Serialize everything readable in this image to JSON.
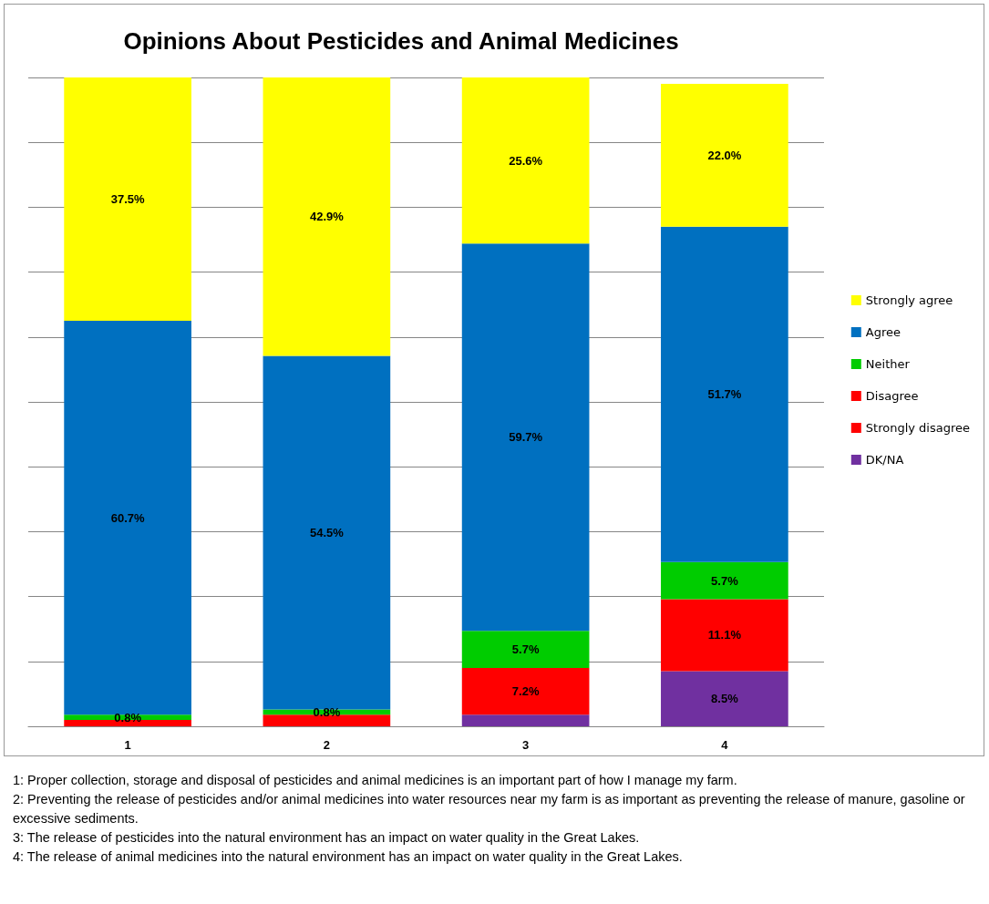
{
  "chart_data": {
    "type": "bar",
    "title": "Opinions About Pesticides and Animal Medicines",
    "categories": [
      "1",
      "2",
      "3",
      "4"
    ],
    "stacked": true,
    "series": [
      {
        "name": "DK/NA",
        "color": "#7030a0",
        "values": [
          null,
          null,
          1.8,
          8.5
        ],
        "value_labels": [
          null,
          null,
          null,
          "8.5%"
        ]
      },
      {
        "name": "Strongly disagree",
        "color": "#ff0000",
        "values": [
          null,
          null,
          null,
          null
        ]
      },
      {
        "name": "Disagree",
        "color": "#ff0000",
        "values": [
          1.0,
          1.8,
          7.2,
          11.1
        ],
        "value_labels": [
          null,
          null,
          "7.2%",
          "11.1%"
        ]
      },
      {
        "name": "Neither",
        "color": "#00cc00",
        "values": [
          0.8,
          0.8,
          5.7,
          5.7
        ],
        "value_labels": [
          "0.8%",
          "0.8%",
          "5.7%",
          "5.7%"
        ]
      },
      {
        "name": "Agree",
        "color": "#0070c0",
        "values": [
          60.7,
          54.5,
          59.7,
          51.7
        ],
        "value_labels": [
          "60.7%",
          "54.5%",
          "59.7%",
          "51.7%"
        ]
      },
      {
        "name": "Strongly agree",
        "color": "#ffff00",
        "values": [
          37.5,
          42.9,
          25.6,
          22.0
        ],
        "value_labels": [
          "37.5%",
          "42.9%",
          "25.6%",
          "22.0%"
        ]
      }
    ],
    "ylim": [
      0,
      100
    ],
    "yticks": [
      {
        "value": 0,
        "label": null
      },
      {
        "value": 10,
        "label": null
      },
      {
        "value": 20,
        "label": null
      },
      {
        "value": 30,
        "label": null
      },
      {
        "value": 40,
        "label": null
      },
      {
        "value": 50,
        "label": null
      },
      {
        "value": 60,
        "label": null
      },
      {
        "value": 70,
        "label": null
      },
      {
        "value": 80,
        "label": null
      },
      {
        "value": 90,
        "label": null
      },
      {
        "value": 100,
        "label": null
      }
    ],
    "tick_labels": "x",
    "grid": "y",
    "legend": "right",
    "annotations": [
      "1: Proper collection, storage and disposal of pesticides and animal medicines is  an important part of how I manage my farm.",
      "2: Preventing the release of pesticides and/or animal medicines into water resources near my farm is  as important as preventing the release of manure, gasoline or excessive sediments.",
      "3: The release of pesticides into the natural environment has an impact on water quality in the Great Lakes.",
      "4: The release of animal medicines into the natural environment has an impact on water quality in the Great Lakes."
    ]
  }
}
